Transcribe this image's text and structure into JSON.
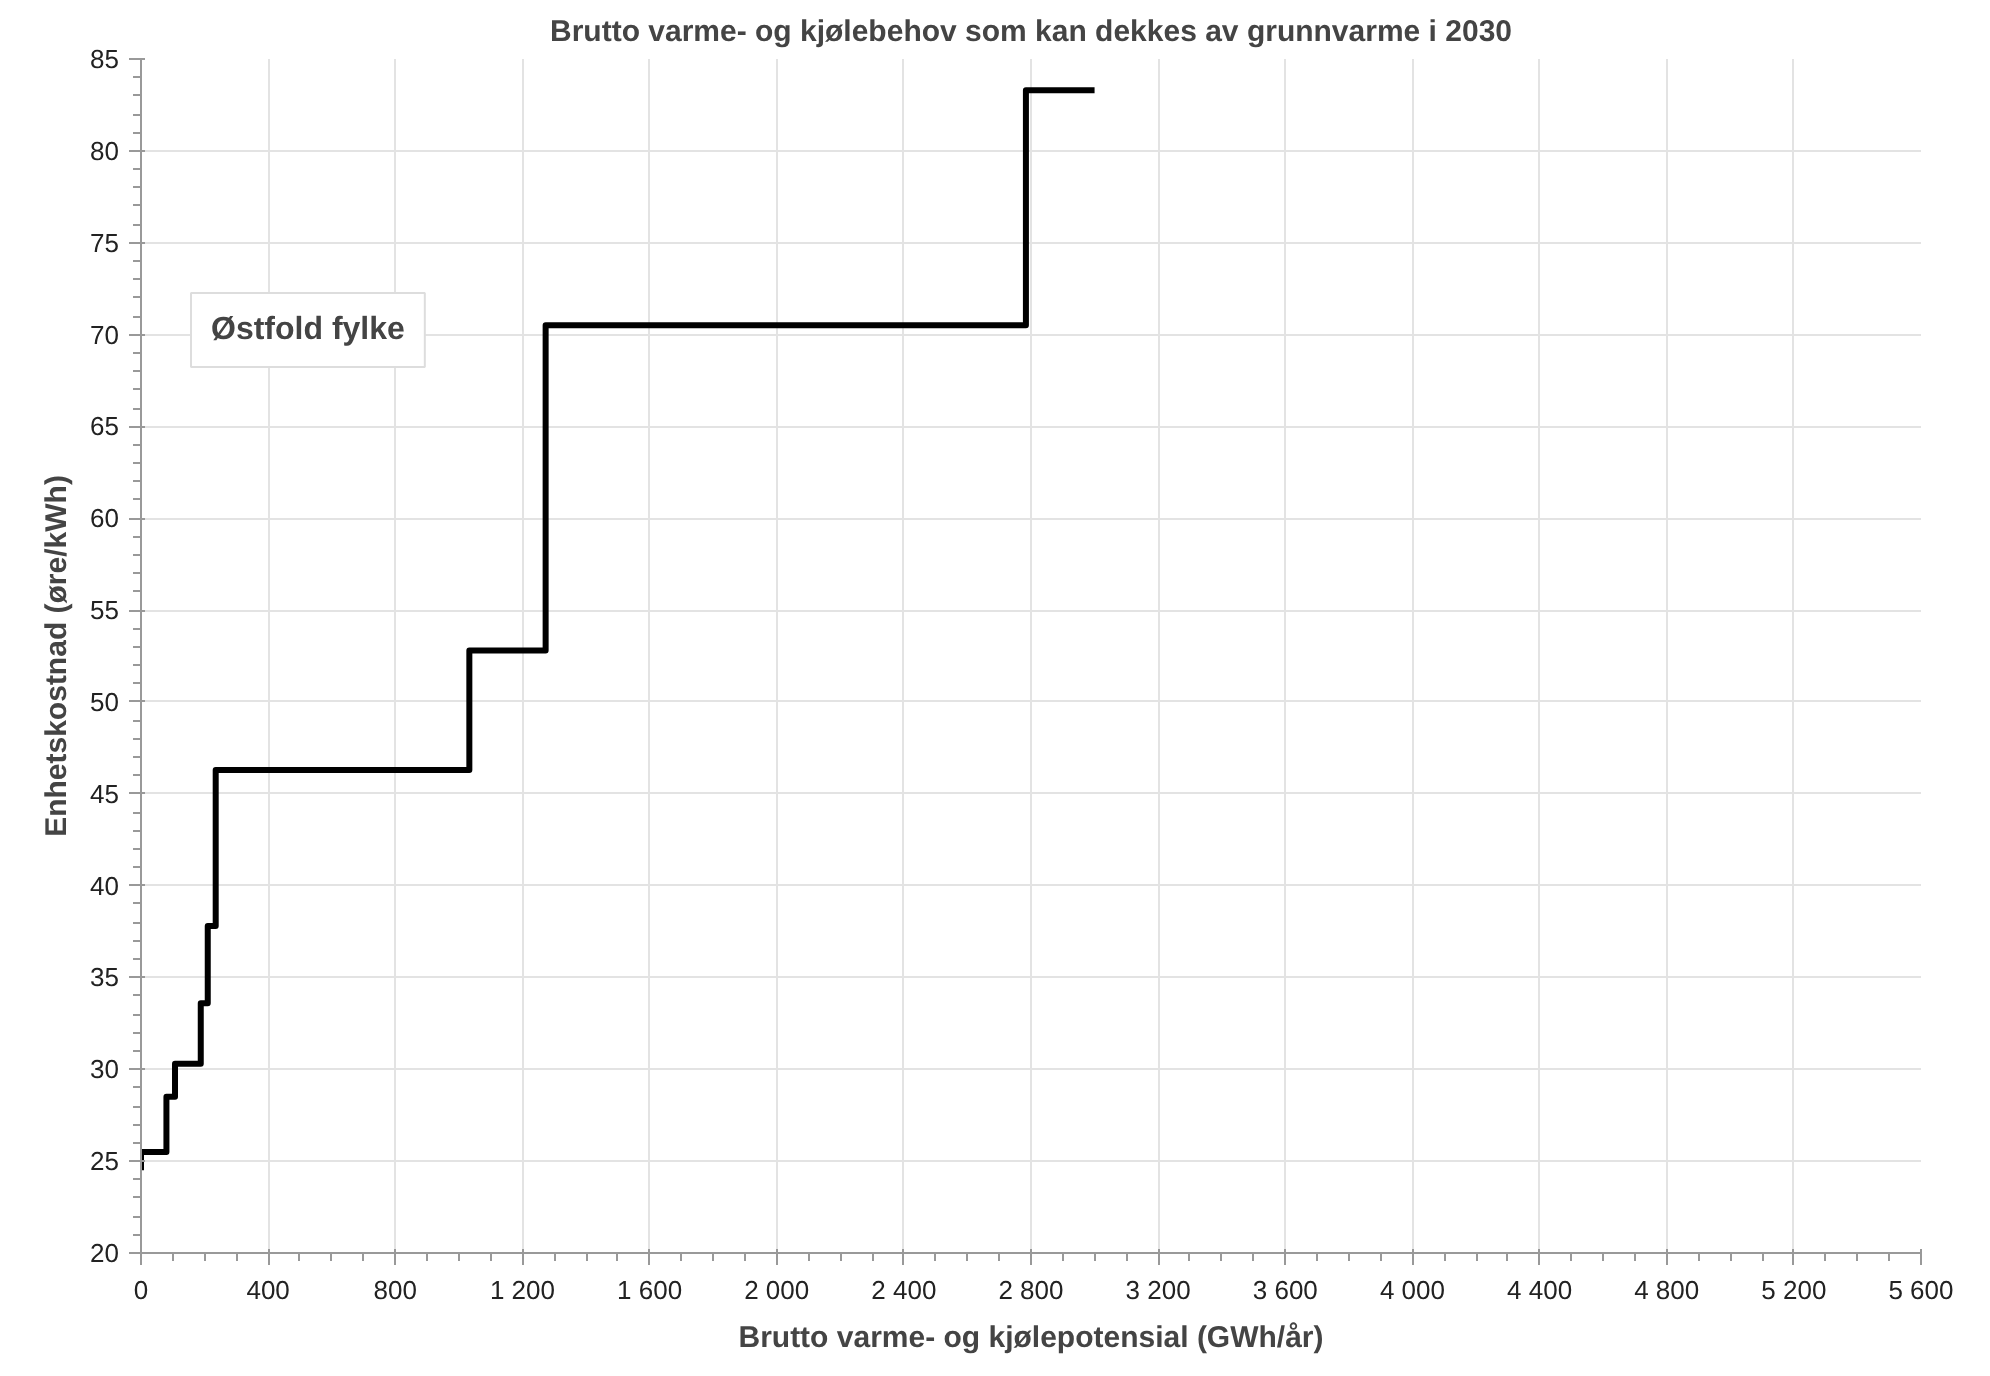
{
  "chart_data": {
    "type": "step",
    "title": "Brutto varme- og kjølebehov som kan dekkes av grunnvarme i 2030",
    "xlabel": "Brutto varme- og kjølepotensial (GWh/år)",
    "ylabel": "Enhetskostnad (øre/kWh)",
    "x": [
      0,
      0,
      80,
      107,
      188,
      210,
      235,
      1033,
      1273,
      2784,
      3000
    ],
    "series": [
      {
        "color": "#000000",
        "values": [
          24.5,
          25.5,
          28.5,
          30.3,
          33.6,
          37.8,
          46.3,
          52.8,
          70.5,
          83.3,
          83.3
        ]
      }
    ],
    "xlim": [
      0,
      5600
    ],
    "ylim": [
      20,
      85
    ],
    "xticks": [
      0,
      400,
      800,
      {
        "value": 1200,
        "label": "1 200"
      },
      {
        "value": 1600,
        "label": "1 600"
      },
      {
        "value": 2000,
        "label": "2 000"
      },
      {
        "value": 2400,
        "label": "2 400"
      },
      {
        "value": 2800,
        "label": "2 800"
      },
      {
        "value": 3200,
        "label": "3 200"
      },
      {
        "value": 3600,
        "label": "3 600"
      },
      {
        "value": 4000,
        "label": "4 000"
      },
      {
        "value": 4400,
        "label": "4 400"
      },
      {
        "value": 4800,
        "label": "4 800"
      },
      {
        "value": 5200,
        "label": "5 200"
      },
      {
        "value": 5600,
        "label": "5 600"
      }
    ],
    "yticks": [
      20,
      25,
      30,
      35,
      40,
      45,
      50,
      55,
      60,
      65,
      70,
      75,
      80,
      85
    ],
    "annotations": [
      "Østfold fylke"
    ],
    "grid": true,
    "line_style": "solid"
  }
}
